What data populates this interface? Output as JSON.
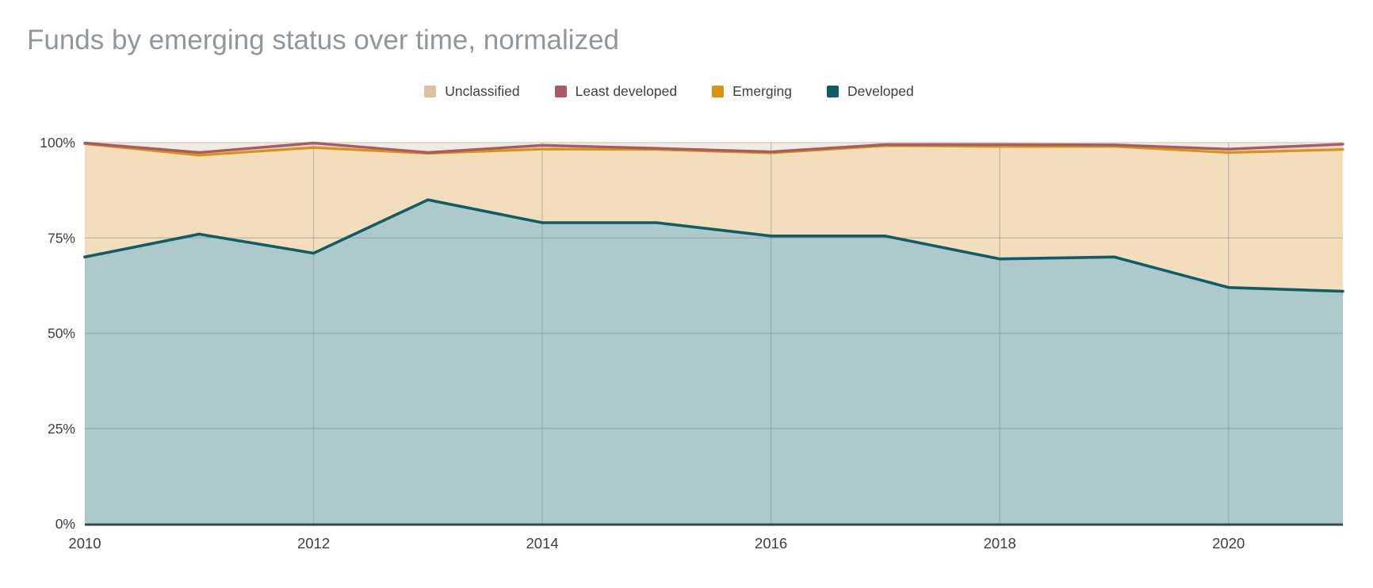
{
  "title": {
    "text": "Funds by emerging status over time, normalized",
    "color": "#8f979b"
  },
  "legend": {
    "items": [
      {
        "label": "Unclassified",
        "color": "#ddc0a4"
      },
      {
        "label": "Least developed",
        "color": "#a85b63"
      },
      {
        "label": "Emerging",
        "color": "#d9930f"
      },
      {
        "label": "Developed",
        "color": "#0e5c66"
      }
    ]
  },
  "axes": {
    "label_color": "#3c4043",
    "y_ticks": [
      {
        "label": "0%",
        "value": 0
      },
      {
        "label": "25%",
        "value": 25
      },
      {
        "label": "50%",
        "value": 50
      },
      {
        "label": "75%",
        "value": 75
      },
      {
        "label": "100%",
        "value": 100
      }
    ],
    "x_ticks": [
      {
        "label": "2010",
        "value": 2010
      },
      {
        "label": "2012",
        "value": 2012
      },
      {
        "label": "2014",
        "value": 2014
      },
      {
        "label": "2016",
        "value": 2016
      },
      {
        "label": "2018",
        "value": 2018
      },
      {
        "label": "2020",
        "value": 2020
      }
    ]
  },
  "chart_data": {
    "type": "area",
    "stacked": true,
    "normalized": true,
    "title": "Funds by emerging status over time, normalized",
    "x": [
      2010,
      2011,
      2012,
      2013,
      2014,
      2015,
      2016,
      2017,
      2018,
      2019,
      2020,
      2021
    ],
    "xlabel": "",
    "ylabel": "",
    "ylim": [
      0,
      100
    ],
    "legend_position": "top",
    "grid_years": [
      2012,
      2014,
      2016,
      2018,
      2020
    ],
    "grid_percents": [
      25,
      50,
      75
    ],
    "series": [
      {
        "name": "Developed",
        "line_color": "#0f5d66",
        "fill_color": "#aec9cc",
        "values": [
          70,
          76,
          71,
          85,
          79,
          79,
          75.5,
          75.5,
          69.5,
          70,
          62,
          61
        ]
      },
      {
        "name": "Emerging",
        "line_color": "#d9930f",
        "fill_color": "#f2debd",
        "values": [
          29.7,
          20.7,
          27.7,
          12.2,
          19.3,
          19.2,
          21.8,
          23.7,
          29.5,
          29,
          35.4,
          37.2
        ]
      },
      {
        "name": "Least developed",
        "line_color": "#a85b63",
        "fill_color": "#e8d2d4",
        "values": [
          0.2,
          0.7,
          1.2,
          0.2,
          1.0,
          0.3,
          0.3,
          0.3,
          0.5,
          0.4,
          0.9,
          1.4
        ]
      },
      {
        "name": "Unclassified",
        "line_color": "#d8d1ce",
        "fill_color": "#f3eae2",
        "values": [
          0.1,
          2.6,
          0.1,
          2.6,
          0.7,
          1.5,
          2.4,
          0.5,
          0.5,
          0.6,
          1.7,
          0.4
        ]
      }
    ],
    "colors": {
      "baseline": "#37474f",
      "gridline": "rgba(134,140,145,0.42)",
      "topline": "#d8d1ce"
    }
  }
}
